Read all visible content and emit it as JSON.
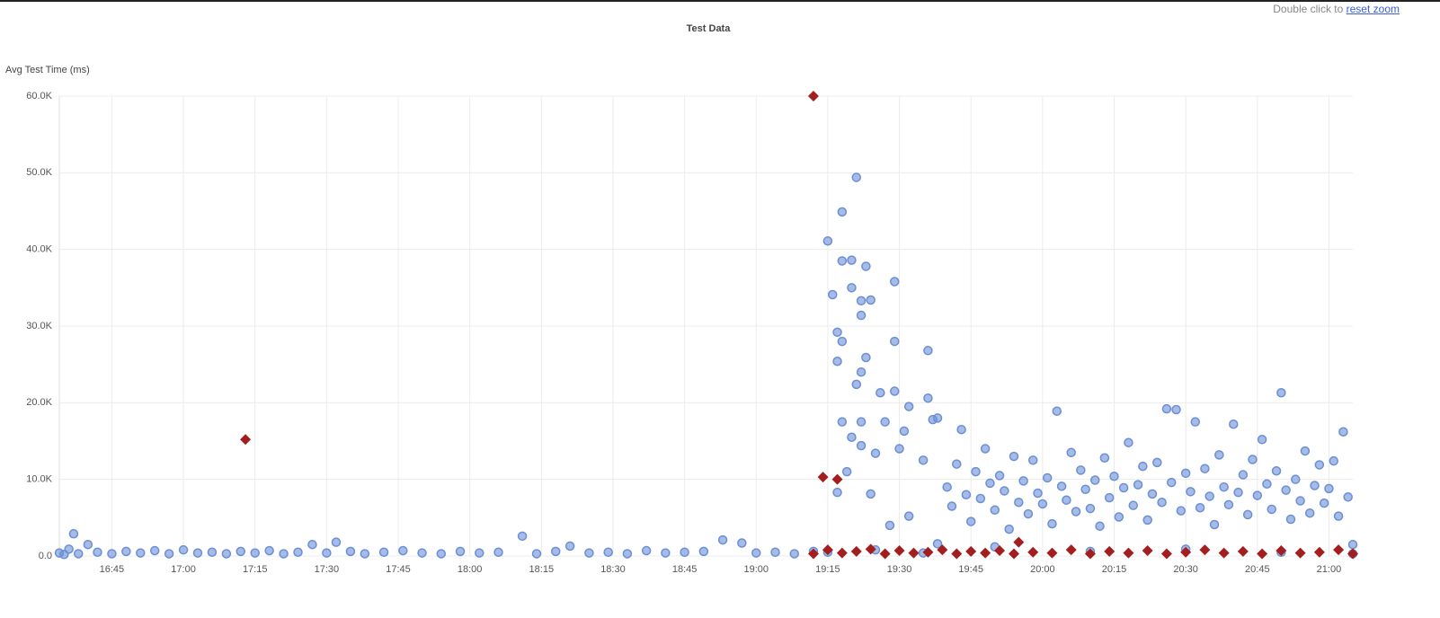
{
  "zoom_hint": {
    "text": "Double click to ",
    "link": "reset zoom"
  },
  "chart_data": {
    "type": "scatter",
    "title": "Test Data",
    "y_label": "Avg Test Time (ms)",
    "xlim": [
      "16:34",
      "21:05"
    ],
    "xticks": [
      "16:45",
      "17:00",
      "17:15",
      "17:30",
      "17:45",
      "18:00",
      "18:15",
      "18:30",
      "18:45",
      "19:00",
      "19:15",
      "19:30",
      "19:45",
      "20:00",
      "20:15",
      "20:30",
      "20:45",
      "21:00"
    ],
    "ylim": [
      0,
      60000
    ],
    "yticks": [
      {
        "value": 0,
        "label": "0.0"
      },
      {
        "value": 10000,
        "label": "10.0K"
      },
      {
        "value": 20000,
        "label": "20.0K"
      },
      {
        "value": 30000,
        "label": "30.0K"
      },
      {
        "value": 40000,
        "label": "40.0K"
      },
      {
        "value": 50000,
        "label": "50.0K"
      },
      {
        "value": 60000,
        "label": "60.0K"
      }
    ],
    "grid": true,
    "series": [
      {
        "color": "#6a8fd6",
        "marker": "circle",
        "x": [
          "16:34",
          "16:35",
          "16:36",
          "16:37",
          "16:38",
          "16:40",
          "16:42",
          "16:45",
          "16:48",
          "16:51",
          "16:54",
          "16:57",
          "17:00",
          "17:03",
          "17:06",
          "17:09",
          "17:12",
          "17:15",
          "17:18",
          "17:21",
          "17:24",
          "17:27",
          "17:30",
          "17:32",
          "17:35",
          "17:38",
          "17:42",
          "17:46",
          "17:50",
          "17:54",
          "17:58",
          "18:02",
          "18:06",
          "18:11",
          "18:14",
          "18:18",
          "18:21",
          "18:25",
          "18:29",
          "18:33",
          "18:37",
          "18:41",
          "18:45",
          "18:49",
          "18:53",
          "18:57",
          "19:00",
          "19:04",
          "19:08",
          "19:12",
          "19:15",
          "19:18",
          "19:21",
          "19:16",
          "19:18",
          "19:20",
          "19:20",
          "19:23",
          "19:22",
          "19:24",
          "19:22",
          "19:17",
          "19:18",
          "19:17",
          "19:29",
          "19:29",
          "19:36",
          "19:23",
          "19:22",
          "19:21",
          "19:26",
          "19:29",
          "19:36",
          "19:32",
          "19:38",
          "19:37",
          "19:18",
          "19:20",
          "19:22",
          "19:25",
          "19:30",
          "19:35",
          "19:17",
          "19:24",
          "19:28",
          "19:32",
          "19:38",
          "19:19",
          "19:22",
          "19:27",
          "19:31",
          "19:40",
          "19:41",
          "19:42",
          "19:43",
          "19:44",
          "19:45",
          "19:46",
          "19:47",
          "19:48",
          "19:49",
          "19:50",
          "19:51",
          "19:52",
          "19:53",
          "19:54",
          "19:55",
          "19:56",
          "19:57",
          "19:58",
          "19:59",
          "20:00",
          "20:01",
          "20:02",
          "20:03",
          "20:04",
          "20:05",
          "20:06",
          "20:07",
          "20:08",
          "20:09",
          "20:10",
          "20:11",
          "20:12",
          "20:13",
          "20:14",
          "20:15",
          "20:16",
          "20:17",
          "20:18",
          "20:19",
          "20:20",
          "20:21",
          "20:22",
          "20:23",
          "20:24",
          "20:25",
          "20:26",
          "20:27",
          "20:28",
          "20:29",
          "20:30",
          "20:31",
          "20:32",
          "20:33",
          "20:34",
          "20:35",
          "20:36",
          "20:37",
          "20:38",
          "20:39",
          "20:40",
          "20:41",
          "20:42",
          "20:43",
          "20:44",
          "20:45",
          "20:46",
          "20:47",
          "20:48",
          "20:49",
          "20:50",
          "20:51",
          "20:52",
          "20:53",
          "20:54",
          "20:55",
          "20:56",
          "20:57",
          "20:58",
          "20:59",
          "21:00",
          "21:01",
          "21:02",
          "21:03",
          "21:04",
          "21:05",
          "19:15",
          "19:25",
          "19:35",
          "19:50",
          "20:10",
          "20:30",
          "20:50",
          "21:05"
        ],
        "values": [
          400,
          200,
          900,
          2900,
          300,
          1500,
          500,
          300,
          600,
          400,
          700,
          300,
          800,
          400,
          500,
          300,
          600,
          400,
          700,
          300,
          500,
          1500,
          400,
          1800,
          600,
          300,
          500,
          700,
          400,
          300,
          600,
          400,
          500,
          2600,
          300,
          600,
          1300,
          400,
          500,
          300,
          700,
          400,
          500,
          600,
          2100,
          1700,
          400,
          500,
          300,
          600,
          41100,
          44900,
          49400,
          34100,
          38500,
          38600,
          35000,
          37800,
          33300,
          33400,
          31400,
          29200,
          28000,
          25400,
          35800,
          28000,
          26800,
          25900,
          24000,
          22400,
          21300,
          21500,
          20600,
          19500,
          18000,
          17800,
          17500,
          15500,
          14400,
          13400,
          14000,
          12500,
          8300,
          8100,
          4000,
          5200,
          1600,
          11000,
          17500,
          17500,
          16300,
          9000,
          6500,
          12000,
          16500,
          8000,
          4500,
          11000,
          7500,
          14000,
          9500,
          6000,
          10500,
          8500,
          3500,
          13000,
          7000,
          9800,
          5500,
          12500,
          8200,
          6800,
          10200,
          4200,
          18900,
          9100,
          7300,
          13500,
          5800,
          11200,
          8700,
          6200,
          9900,
          3900,
          12800,
          7600,
          10400,
          5100,
          8900,
          14800,
          6600,
          9300,
          11700,
          4700,
          8100,
          12200,
          7000,
          19200,
          9600,
          19100,
          5900,
          10800,
          8400,
          17500,
          6300,
          11400,
          7800,
          4100,
          13200,
          9000,
          6700,
          17200,
          8300,
          10600,
          5400,
          12600,
          7900,
          15200,
          9400,
          6100,
          11100,
          21300,
          8600,
          4800,
          10000,
          7200,
          13700,
          5600,
          9200,
          11900,
          6900,
          8800,
          12400,
          5200,
          16200,
          7700,
          1500,
          500,
          800,
          400,
          1200,
          600,
          900,
          500,
          300
        ]
      },
      {
        "color": "#a31f1f",
        "marker": "diamond",
        "x": [
          "17:13",
          "19:12",
          "19:14",
          "19:17",
          "19:55",
          "19:12",
          "19:15",
          "19:18",
          "19:21",
          "19:24",
          "19:27",
          "19:30",
          "19:33",
          "19:36",
          "19:39",
          "19:42",
          "19:45",
          "19:48",
          "19:51",
          "19:54",
          "19:58",
          "20:02",
          "20:06",
          "20:10",
          "20:14",
          "20:18",
          "20:22",
          "20:26",
          "20:30",
          "20:34",
          "20:38",
          "20:42",
          "20:46",
          "20:50",
          "20:54",
          "20:58",
          "21:02",
          "21:05"
        ],
        "values": [
          15200,
          60000,
          10300,
          10000,
          1800,
          300,
          800,
          400,
          600,
          900,
          300,
          700,
          400,
          500,
          800,
          300,
          600,
          400,
          700,
          300,
          500,
          400,
          800,
          300,
          600,
          400,
          700,
          300,
          500,
          800,
          400,
          600,
          300,
          700,
          400,
          500,
          800,
          300
        ]
      }
    ]
  }
}
